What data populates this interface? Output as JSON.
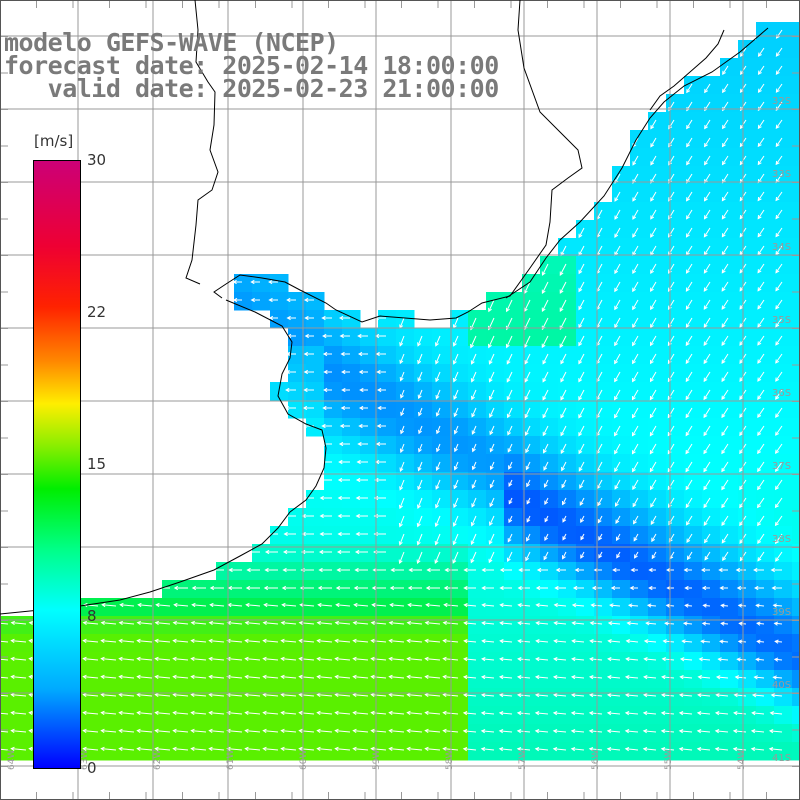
{
  "title": {
    "line1": "modelo GEFS-WAVE (NCEP)",
    "line2": "forecast date: 2025-02-14 18:00:00",
    "line3": "   valid date: 2025-02-23 21:00:00"
  },
  "colorbar": {
    "unit": "[m/s]",
    "ticks": [
      "30",
      "22",
      "15",
      "8",
      "0"
    ],
    "colors": [
      "#0000ff",
      "#00aaff",
      "#00ffff",
      "#00ee00",
      "#ffee00",
      "#ff8800",
      "#ff2200",
      "#cc0077"
    ]
  },
  "map": {
    "land_color": "#ffffff",
    "coast_color": "#000000",
    "grid_color": "#999999",
    "vector_color": "#ffffff",
    "lat_labels": [
      "32S",
      "33S",
      "34S",
      "35S",
      "36S",
      "37S",
      "38S",
      "39S",
      "40S",
      "41S"
    ],
    "lon_labels": [
      "64W",
      "63W",
      "62W",
      "61W",
      "60W",
      "59W",
      "58W",
      "57W",
      "56W",
      "55W",
      "54W"
    ]
  }
}
